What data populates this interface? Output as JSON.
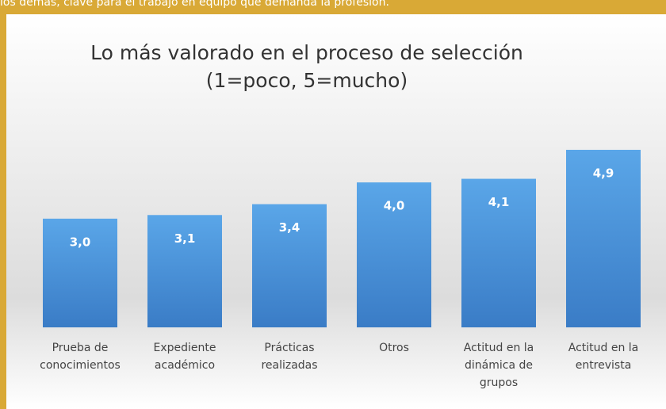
{
  "header_text": "los demás, clave para el trabajo en equipo que demanda la profesión.",
  "chart_data": {
    "type": "bar",
    "title": [
      "Lo más valorado en el proceso de selección",
      "(1=poco, 5=mucho)"
    ],
    "categories": [
      [
        "Prueba de",
        "conocimientos"
      ],
      [
        "Expediente",
        "académico"
      ],
      [
        "Prácticas",
        "realizadas"
      ],
      [
        "Otros"
      ],
      [
        "Actitud en la",
        "dinámica de",
        "grupos"
      ],
      [
        "Actitud en la",
        "entrevista"
      ]
    ],
    "values": [
      3.0,
      3.1,
      3.4,
      4.0,
      4.1,
      4.9
    ],
    "value_labels": [
      "3,0",
      "3,1",
      "3,4",
      "4,0",
      "4,1",
      "4,9"
    ],
    "color": "#4a90d9"
  }
}
